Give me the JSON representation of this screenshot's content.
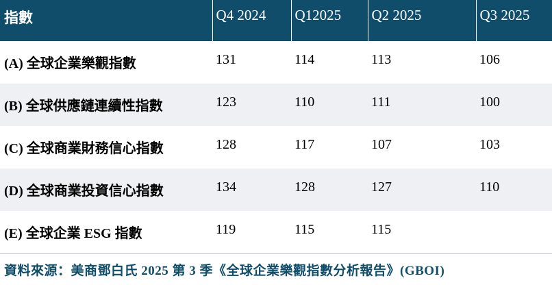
{
  "table": {
    "headers": [
      "指數",
      "Q4 2024",
      "Q12025",
      "Q2 2025",
      "Q3 2025"
    ],
    "rows": [
      {
        "name": "(A) 全球企業樂觀指數",
        "values": [
          "131",
          "114",
          "113",
          "106"
        ]
      },
      {
        "name": "(B) 全球供應鏈連續性指數",
        "values": [
          "123",
          "110",
          "111",
          "100"
        ]
      },
      {
        "name": "(C) 全球商業財務信心指數",
        "values": [
          "128",
          "117",
          "107",
          "103"
        ]
      },
      {
        "name": "(D) 全球商業投資信心指數",
        "values": [
          "134",
          "128",
          "127",
          "110"
        ]
      },
      {
        "name": "(E) 全球企業 ESG 指數",
        "values": [
          "119",
          "115",
          "115",
          ""
        ]
      }
    ]
  },
  "source": "資料來源：美商鄧白氏 2025 第 3 季《全球企業樂觀指數分析報告》(GBOI)",
  "colors": {
    "header_bg": "#0f4d6a",
    "header_text": "#ffffff",
    "stripe": "#eef0f3",
    "source_text": "#0f4d6a"
  }
}
